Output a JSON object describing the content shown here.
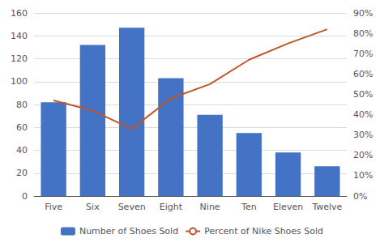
{
  "chart_data": {
    "type": "bar",
    "categories": [
      "Five",
      "Six",
      "Seven",
      "Eight",
      "Nine",
      "Ten",
      "Eleven",
      "Twelve"
    ],
    "series": [
      {
        "name": "Number of Shoes Sold",
        "type": "bar",
        "color": "#4472C4",
        "values": [
          82,
          132,
          147,
          103,
          71,
          55,
          38,
          26
        ]
      },
      {
        "name": "Percent of Nike Shoes Sold",
        "type": "line",
        "color": "#C0562A",
        "axis": "y2",
        "values": [
          0.47,
          0.42,
          0.33,
          0.48,
          0.55,
          0.67,
          0.75,
          0.82
        ]
      }
    ],
    "ylim": [
      0,
      160
    ],
    "yticks": [
      0,
      20,
      40,
      60,
      80,
      100,
      120,
      140,
      160
    ],
    "y2lim": [
      0,
      0.9
    ],
    "y2ticks": [
      {
        "value": 0.0,
        "label": "0%"
      },
      {
        "value": 0.1,
        "label": "10%"
      },
      {
        "value": 0.2,
        "label": "20%"
      },
      {
        "value": 0.3,
        "label": "30%"
      },
      {
        "value": 0.4,
        "label": "40%"
      },
      {
        "value": 0.5,
        "label": "50%"
      },
      {
        "value": 0.6,
        "label": "60%"
      },
      {
        "value": 0.7,
        "label": "70%"
      },
      {
        "value": 0.8,
        "label": "80%"
      },
      {
        "value": 0.9,
        "label": "90%"
      }
    ],
    "grid": true,
    "legend": "bottom"
  }
}
